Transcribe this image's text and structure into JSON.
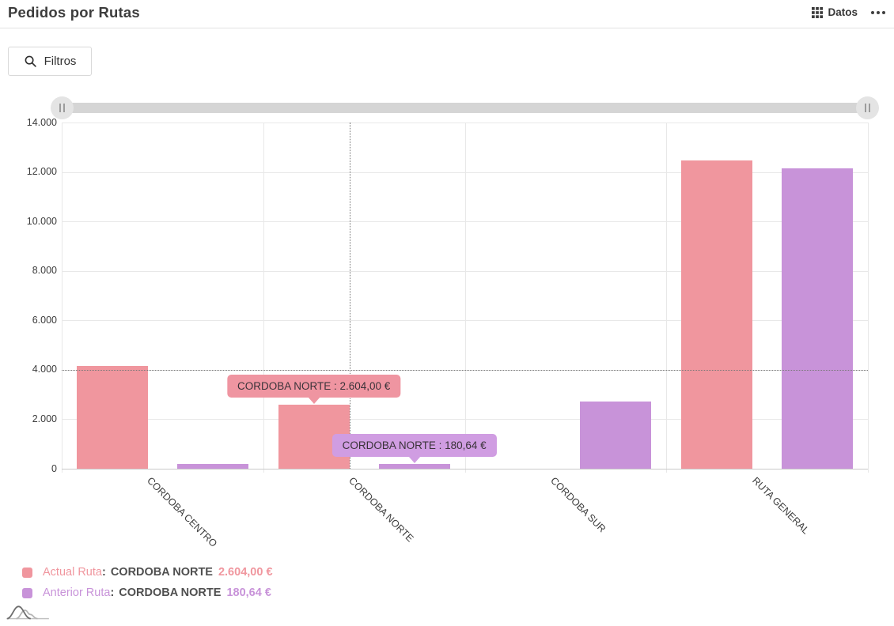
{
  "header": {
    "title": "Pedidos por Rutas",
    "datos_label": "Datos"
  },
  "filters": {
    "label": "Filtros"
  },
  "chart_data": {
    "type": "bar",
    "title": "Pedidos por Rutas",
    "categories": [
      "CORDOBA CENTRO",
      "CORDOBA NORTE",
      "CORDOBA SUR",
      "RUTA GENERAL"
    ],
    "series": [
      {
        "name": "Actual Ruta",
        "color": "#f0969e",
        "values": [
          4150,
          2604,
          0,
          12480
        ]
      },
      {
        "name": "Anterior Ruta",
        "color": "#c893d9",
        "values": [
          190,
          180.64,
          2720,
          12160
        ]
      }
    ],
    "xlabel": "",
    "ylabel": "",
    "ylim": [
      0,
      14000
    ],
    "ytick_step": 2000,
    "ytick_labels": [
      "0",
      "2.000",
      "4.000",
      "6.000",
      "8.000",
      "10.000",
      "12.000",
      "14.000"
    ],
    "grid": true,
    "legend_position": "bottom-left",
    "crosshair": {
      "category": "CORDOBA NORTE",
      "value": 4000
    },
    "tooltips": [
      {
        "series": "Actual Ruta",
        "category": "CORDOBA NORTE",
        "text": "CORDOBA NORTE : 2.604,00 €",
        "bg": "#ef95a1"
      },
      {
        "series": "Anterior Ruta",
        "category": "CORDOBA NORTE",
        "text": "CORDOBA NORTE : 180,64 €",
        "bg": "#d09de2"
      }
    ]
  },
  "legend": {
    "separator": ":",
    "rows": [
      {
        "series": "Actual Ruta",
        "category": "CORDOBA NORTE",
        "value": "2.604,00 €",
        "color": "#f0969e"
      },
      {
        "series": "Anterior Ruta",
        "category": "CORDOBA NORTE",
        "value": "180,64 €",
        "color": "#c893d9"
      }
    ]
  }
}
